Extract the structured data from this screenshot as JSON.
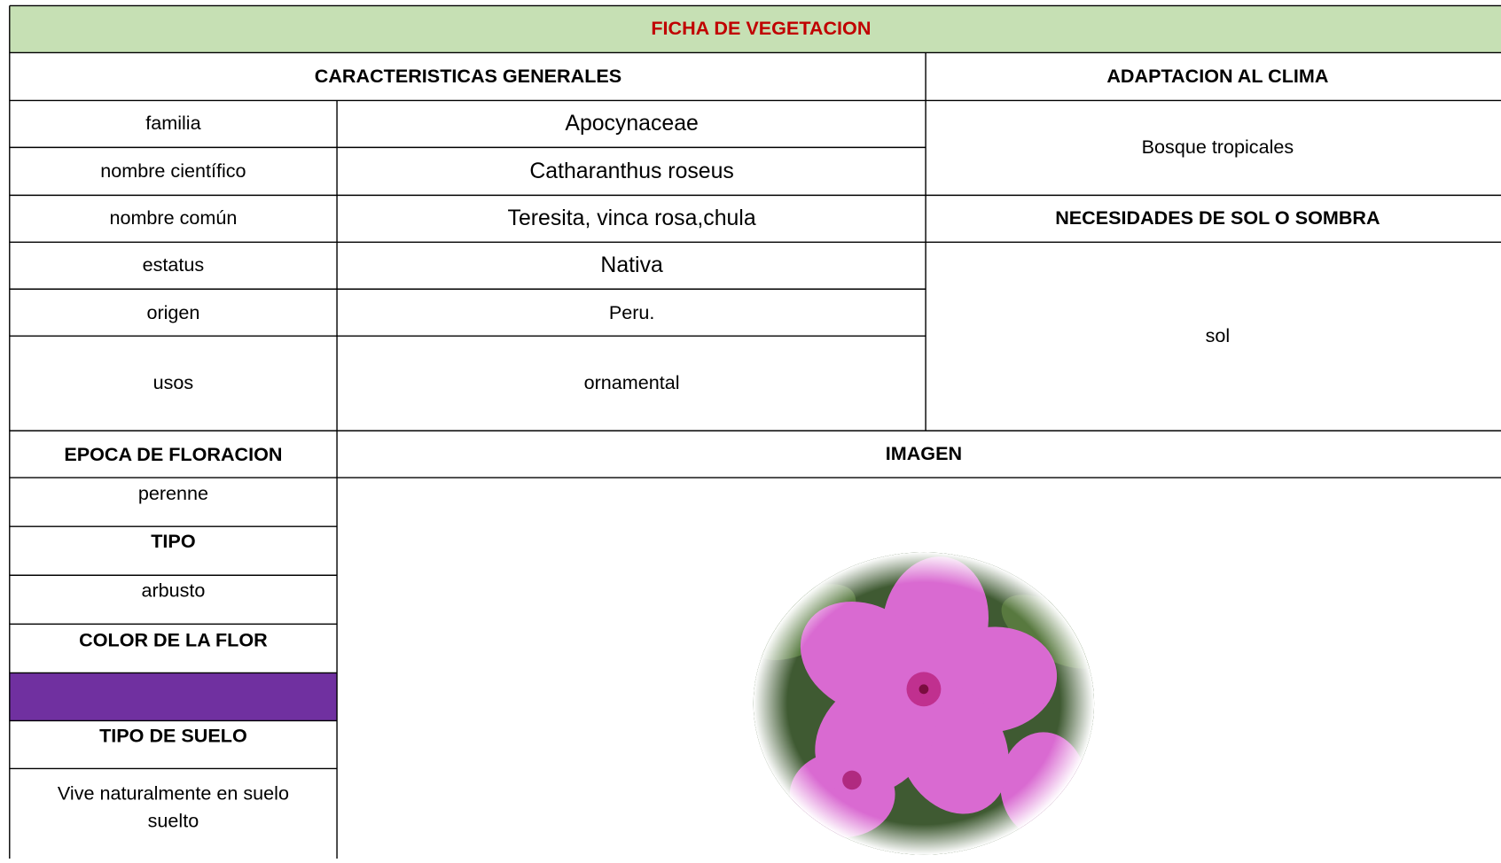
{
  "header": {
    "title": "FICHA DE VEGETACION"
  },
  "sections": {
    "general": "CARACTERISTICAS GENERALES",
    "climate": "ADAPTACION AL CLIMA",
    "sun": "NECESIDADES DE SOL O SOMBRA",
    "flowering": "EPOCA DE FLORACION",
    "image": "IMAGEN",
    "type": "TIPO",
    "flower_color": "COLOR DE LA FLOR",
    "soil": "TIPO DE SUELO"
  },
  "table": {
    "rows": [
      [
        "familia",
        "Apocynaceae"
      ],
      [
        "nombre científico",
        "Catharanthus roseus"
      ],
      [
        "nombre común",
        "Teresita, vinca rosa,chula"
      ],
      [
        "estatus",
        "Nativa"
      ],
      [
        "origen",
        "Peru."
      ],
      [
        "usos",
        "ornamental"
      ]
    ]
  },
  "climate": "Bosque tropicales",
  "sun": "sol",
  "flowering": "perenne",
  "type": "arbusto",
  "soil": [
    "Vive naturalmente en suelo",
    "suelto"
  ]
}
